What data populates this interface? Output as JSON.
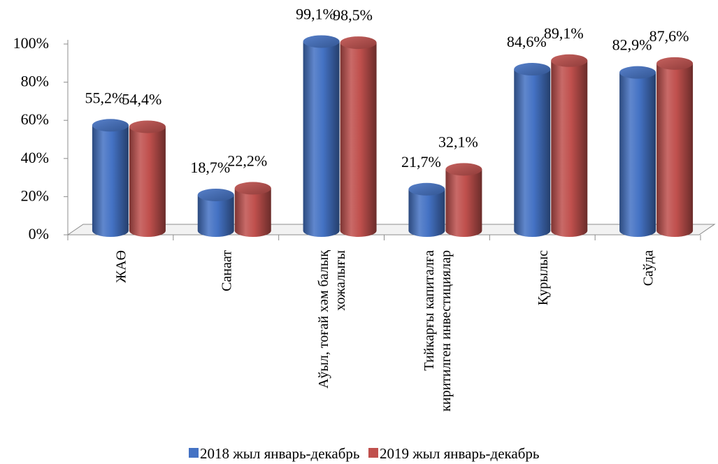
{
  "chart_data": {
    "type": "bar",
    "title": "",
    "xlabel": "",
    "ylabel": "",
    "ylim": [
      0,
      100
    ],
    "y_ticks": [
      "0%",
      "20%",
      "40%",
      "60%",
      "80%",
      "100%"
    ],
    "y_tick_values": [
      0,
      20,
      40,
      60,
      80,
      100
    ],
    "categories": [
      [
        "ЖАӨ"
      ],
      [
        "Санаат"
      ],
      [
        "Аўыл, тоғай хәм балық",
        "хожалығы"
      ],
      [
        "Тийкарғы капиталға",
        "киритилген инвестициялар"
      ],
      [
        "Қурылыс"
      ],
      [
        "Саўда"
      ]
    ],
    "series": [
      {
        "name": "2018 жыл январь-декабрь",
        "color": "#4472C4",
        "values": [
          55.2,
          18.7,
          99.1,
          21.7,
          84.6,
          82.9
        ],
        "labels": [
          "55,2%",
          "18,7%",
          "99,1%",
          "21,7%",
          "84,6%",
          "82,9%"
        ]
      },
      {
        "name": "2019 жыл январь-декабрь",
        "color": "#C0504D",
        "values": [
          54.4,
          22.2,
          98.5,
          32.1,
          89.1,
          87.6
        ],
        "labels": [
          "54,4%",
          "22,2%",
          "98,5%",
          "32,1%",
          "89,1%",
          "87,6%"
        ]
      }
    ],
    "legend_position": "bottom",
    "grid": false,
    "style": "3d-cylinder"
  }
}
